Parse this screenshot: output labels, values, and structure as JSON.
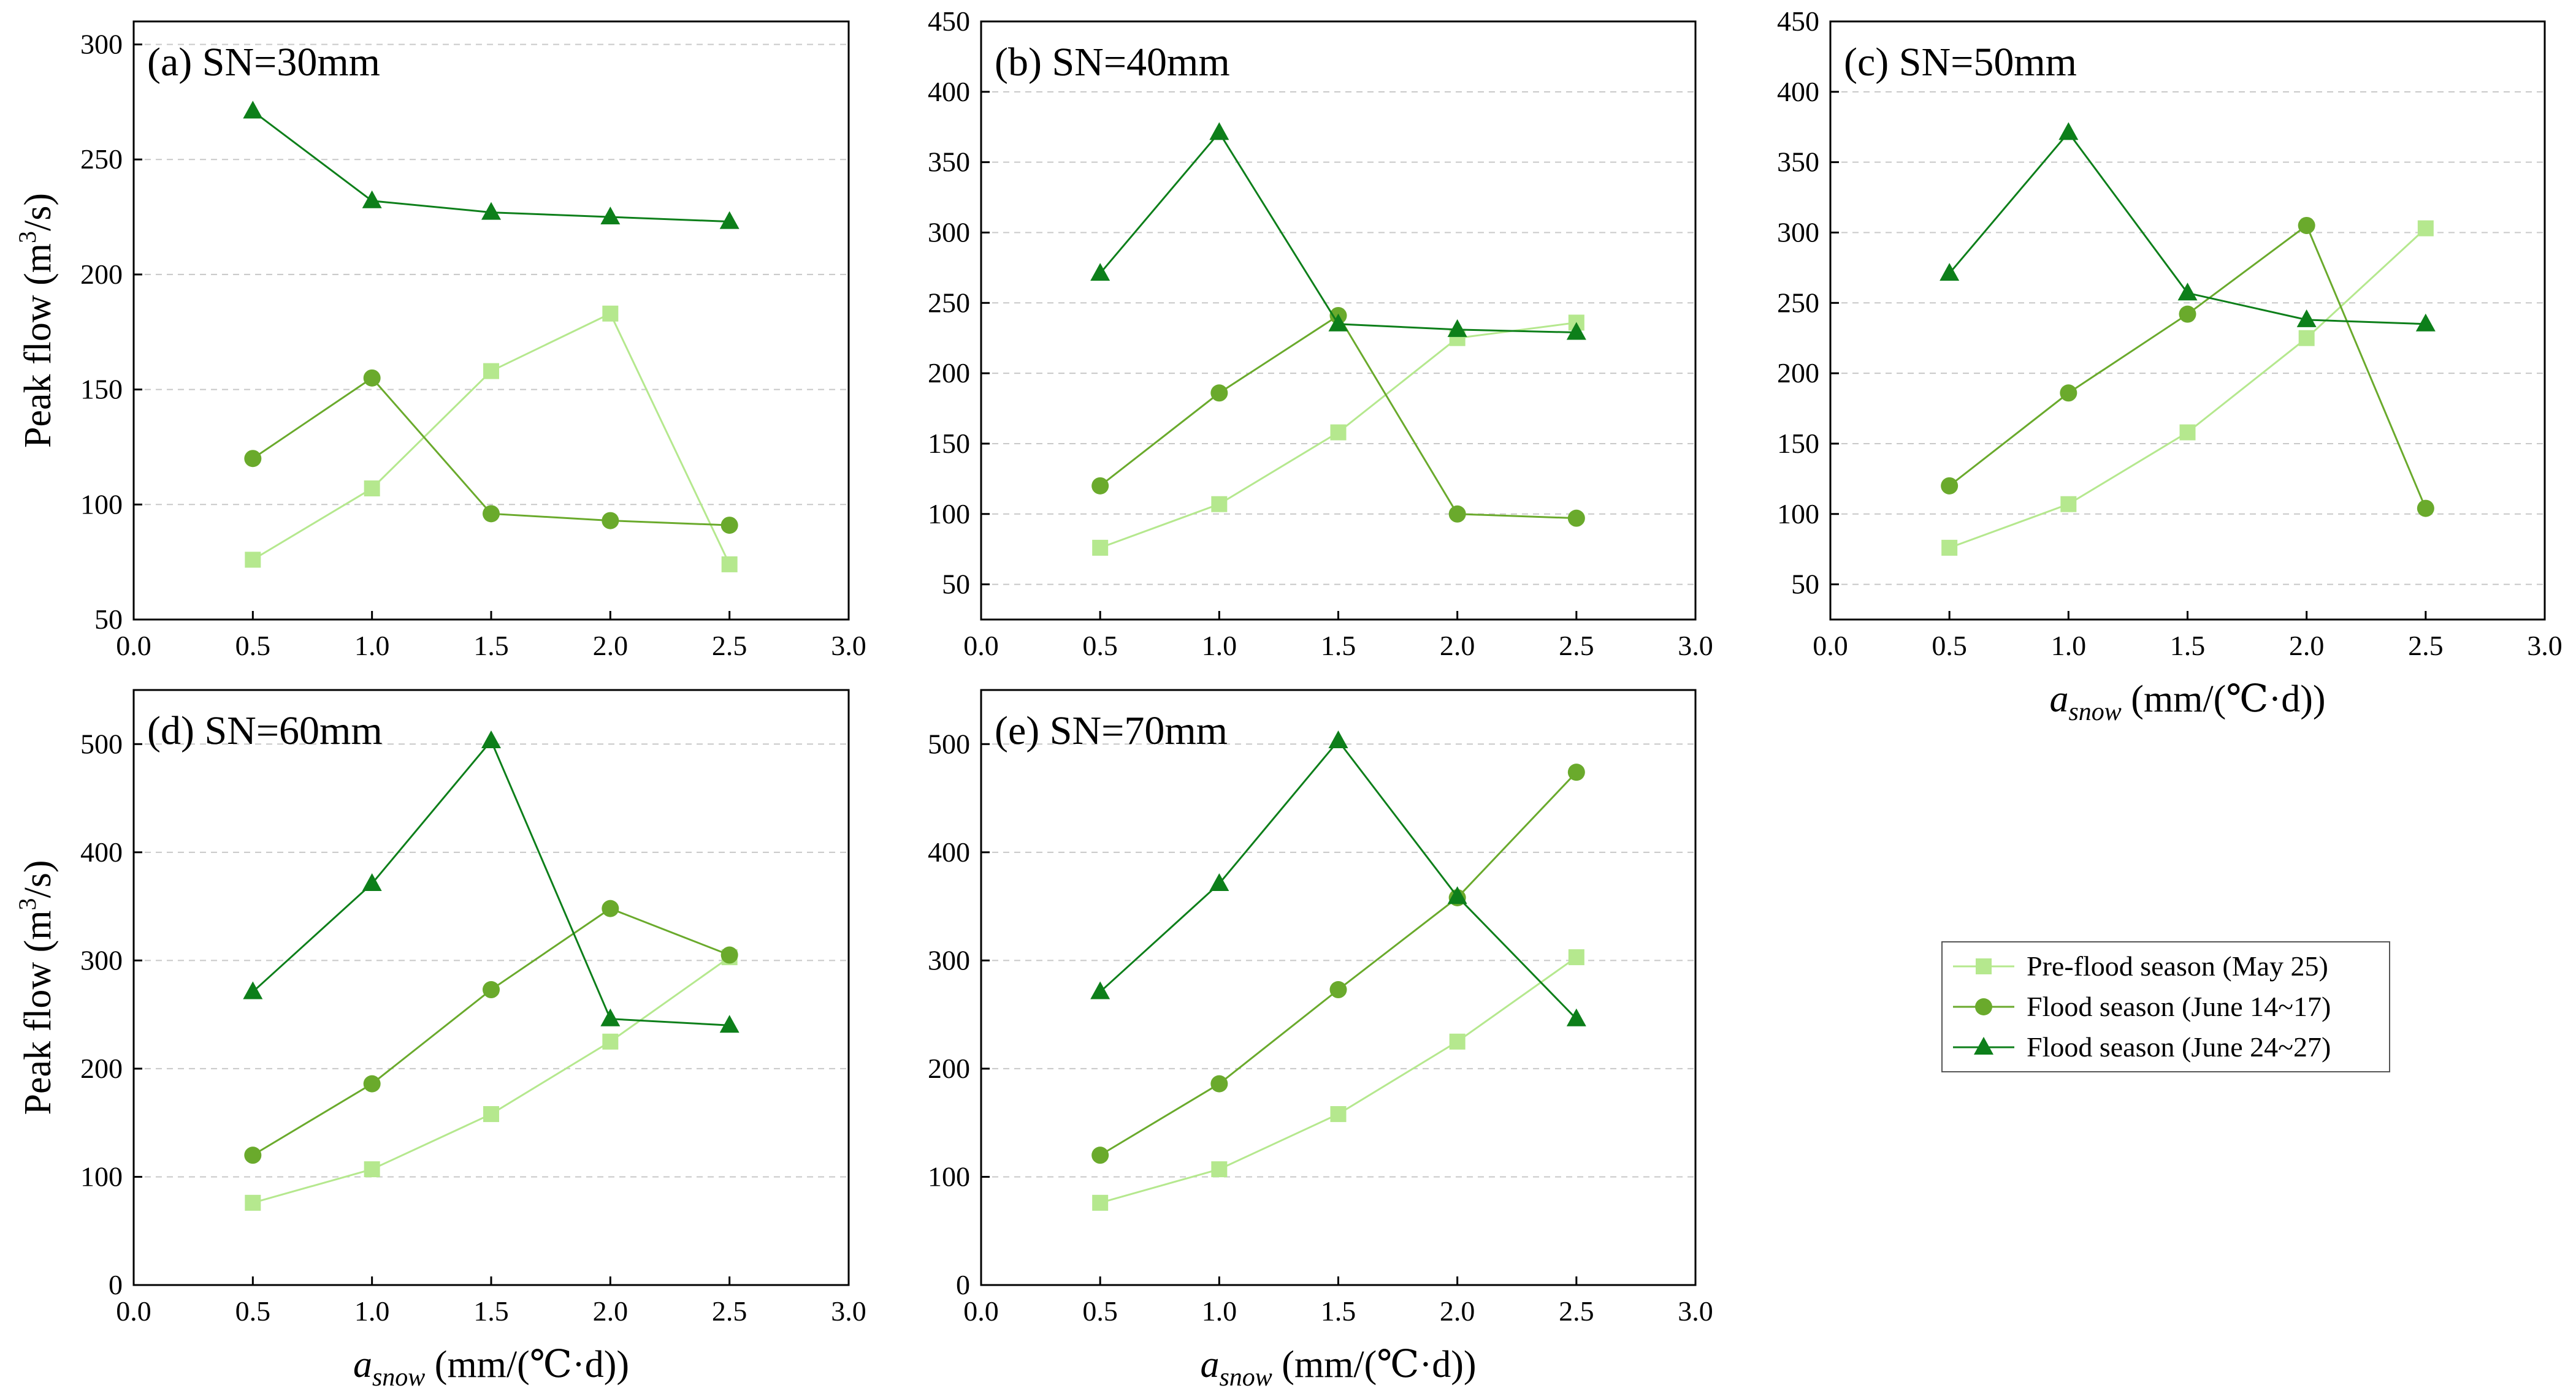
{
  "colors": {
    "pre_flood": "#b5e88e",
    "flood_june14": "#6aaa2c",
    "flood_june24": "#0d7f1a",
    "grid": "#c8c8c8",
    "axis": "#000000"
  },
  "legend": {
    "entries": [
      "Pre-flood season (May 25)",
      "Flood season (June 14~17)",
      "Flood season (June 24~27)"
    ]
  },
  "axis_labels": {
    "y_prefix": "Peak flow (m",
    "y_sup": "3",
    "y_suffix": "/s)",
    "x_var": "a",
    "x_sub": "snow",
    "x_unit": " (mm/(℃·d))"
  },
  "chart_data": [
    {
      "type": "line",
      "title": "(a) SN=30mm",
      "xlim": [
        0,
        3
      ],
      "ylim": [
        50,
        310
      ],
      "x": [
        0.5,
        1.0,
        1.5,
        2.0,
        2.5
      ],
      "xticks": [
        "0.0",
        "0.5",
        "1.0",
        "1.5",
        "2.0",
        "2.5",
        "3.0"
      ],
      "yticks": [
        "50",
        "100",
        "150",
        "200",
        "250",
        "300"
      ],
      "series": [
        {
          "name": "Pre-flood season (May 25)",
          "values": [
            76,
            107,
            158,
            183,
            74
          ]
        },
        {
          "name": "Flood season (June 14~17)",
          "values": [
            120,
            155,
            96,
            93,
            91
          ]
        },
        {
          "name": "Flood season (June 24~27)",
          "values": [
            271,
            232,
            227,
            225,
            223
          ]
        }
      ]
    },
    {
      "type": "line",
      "title": "(b) SN=40mm",
      "xlim": [
        0,
        3
      ],
      "ylim": [
        25,
        450
      ],
      "x": [
        0.5,
        1.0,
        1.5,
        2.0,
        2.5
      ],
      "xticks": [
        "0.0",
        "0.5",
        "1.0",
        "1.5",
        "2.0",
        "2.5",
        "3.0"
      ],
      "yticks": [
        "50",
        "100",
        "150",
        "200",
        "250",
        "300",
        "350",
        "400",
        "450"
      ],
      "series": [
        {
          "name": "Pre-flood season (May 25)",
          "values": [
            76,
            107,
            158,
            225,
            236
          ]
        },
        {
          "name": "Flood season (June 14~17)",
          "values": [
            120,
            186,
            241,
            100,
            97
          ]
        },
        {
          "name": "Flood season (June 24~27)",
          "values": [
            271,
            371,
            235,
            231,
            229
          ]
        }
      ]
    },
    {
      "type": "line",
      "title": "(c) SN=50mm",
      "xlim": [
        0,
        3
      ],
      "ylim": [
        25,
        450
      ],
      "x": [
        0.5,
        1.0,
        1.5,
        2.0,
        2.5
      ],
      "xticks": [
        "0.0",
        "0.5",
        "1.0",
        "1.5",
        "2.0",
        "2.5",
        "3.0"
      ],
      "yticks": [
        "50",
        "100",
        "150",
        "200",
        "250",
        "300",
        "350",
        "400",
        "450"
      ],
      "series": [
        {
          "name": "Pre-flood season (May 25)",
          "values": [
            76,
            107,
            158,
            225,
            303
          ]
        },
        {
          "name": "Flood season (June 14~17)",
          "values": [
            120,
            186,
            242,
            305,
            104
          ]
        },
        {
          "name": "Flood season (June 24~27)",
          "values": [
            271,
            371,
            257,
            238,
            235
          ]
        }
      ]
    },
    {
      "type": "line",
      "title": "(d) SN=60mm",
      "xlim": [
        0,
        3
      ],
      "ylim": [
        0,
        550
      ],
      "x": [
        0.5,
        1.0,
        1.5,
        2.0,
        2.5
      ],
      "xticks": [
        "0.0",
        "0.5",
        "1.0",
        "1.5",
        "2.0",
        "2.5",
        "3.0"
      ],
      "yticks": [
        "0",
        "100",
        "200",
        "300",
        "400",
        "500"
      ],
      "series": [
        {
          "name": "Pre-flood season (May 25)",
          "values": [
            76,
            107,
            158,
            225,
            303
          ]
        },
        {
          "name": "Flood season (June 14~17)",
          "values": [
            120,
            186,
            273,
            348,
            305
          ]
        },
        {
          "name": "Flood season (June 24~27)",
          "values": [
            271,
            371,
            503,
            246,
            240
          ]
        }
      ]
    },
    {
      "type": "line",
      "title": "(e) SN=70mm",
      "xlim": [
        0,
        3
      ],
      "ylim": [
        0,
        550
      ],
      "x": [
        0.5,
        1.0,
        1.5,
        2.0,
        2.5
      ],
      "xticks": [
        "0.0",
        "0.5",
        "1.0",
        "1.5",
        "2.0",
        "2.5",
        "3.0"
      ],
      "yticks": [
        "0",
        "100",
        "200",
        "300",
        "400",
        "500"
      ],
      "series": [
        {
          "name": "Pre-flood season (May 25)",
          "values": [
            76,
            107,
            158,
            225,
            303
          ]
        },
        {
          "name": "Flood season (June 14~17)",
          "values": [
            120,
            186,
            273,
            358,
            474
          ]
        },
        {
          "name": "Flood season (June 24~27)",
          "values": [
            271,
            371,
            503,
            359,
            246
          ]
        }
      ]
    }
  ]
}
